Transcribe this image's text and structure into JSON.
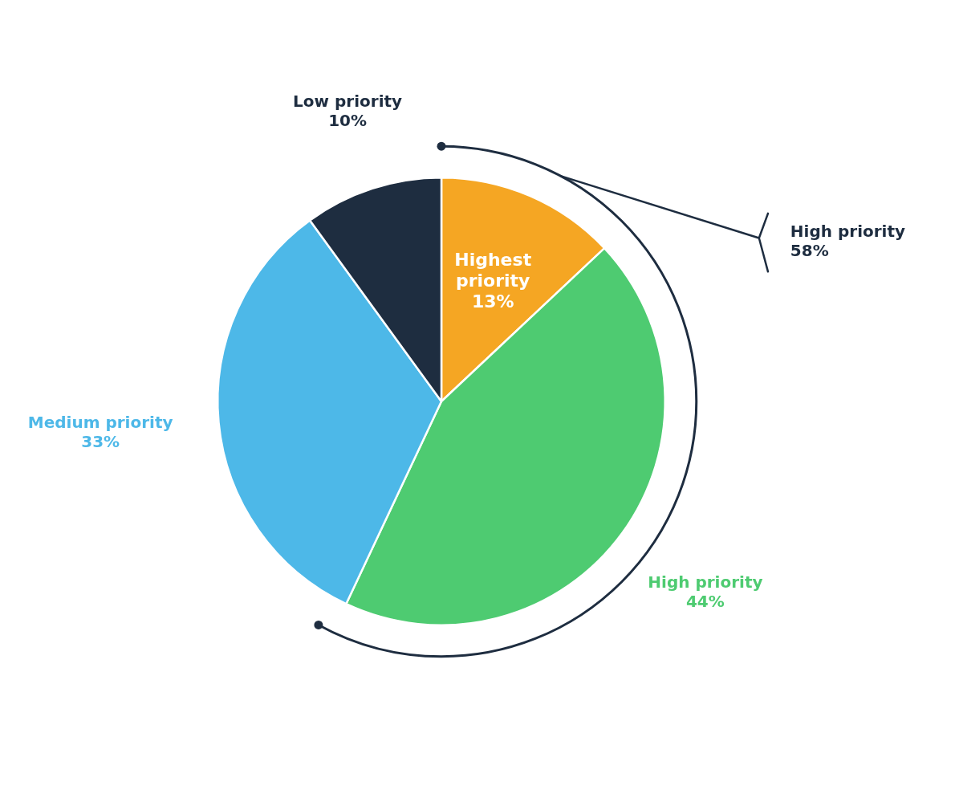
{
  "chart_data": {
    "type": "pie",
    "categories": [
      "Highest priority",
      "High priority",
      "Medium priority",
      "Low priority"
    ],
    "values": [
      13,
      44,
      33,
      10
    ],
    "value_labels": [
      "13%",
      "44%",
      "33%",
      "10%"
    ],
    "colors": [
      "#f5a623",
      "#4ecb71",
      "#4db8e8",
      "#1e2d40"
    ],
    "data_labels": true,
    "annotations": [
      {
        "text": "High priority",
        "value": 58,
        "value_label": "58%",
        "color": "#1e2d40"
      }
    ]
  }
}
